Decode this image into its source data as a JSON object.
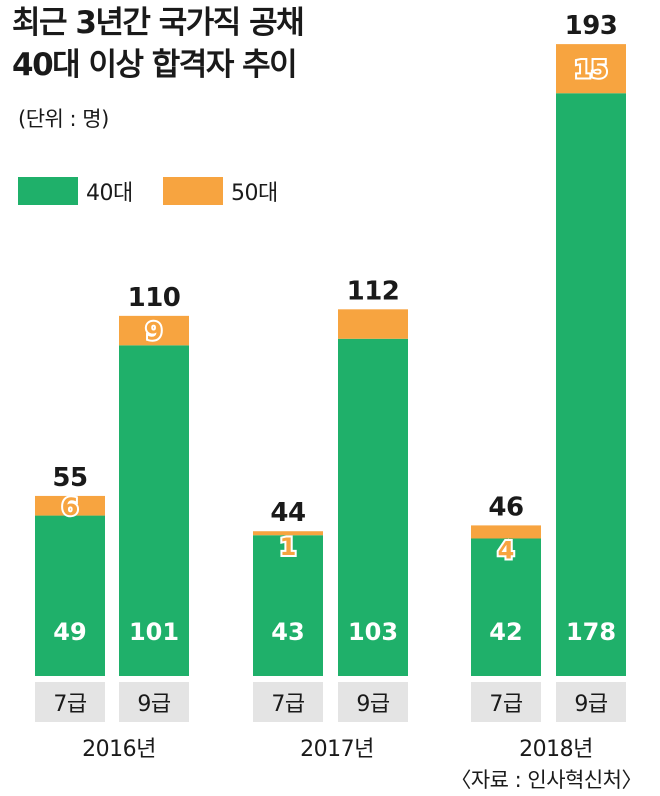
{
  "title_line1": "최근 3년간 국가직 공채",
  "title_line2": "40대 이상 합격자 추이",
  "unit": "(단위 : 명)",
  "source": "〈자료 : 인사혁신처〉",
  "colors": {
    "age40": "#1fb06a",
    "age50": "#f7a440",
    "xband": "#e4e4e4"
  },
  "chart_data": {
    "type": "bar",
    "stacked": true,
    "groups": [
      {
        "year": "2016년",
        "bars": [
          {
            "category": "7급",
            "age40": 49,
            "age50": 6,
            "total": 55
          },
          {
            "category": "9급",
            "age40": 101,
            "age50": 9,
            "total": 110
          }
        ]
      },
      {
        "year": "2017년",
        "bars": [
          {
            "category": "7급",
            "age40": 43,
            "age50": 1,
            "total": 44
          },
          {
            "category": "9급",
            "age40": 103,
            "age50": 9,
            "total": 112
          }
        ]
      },
      {
        "year": "2018년",
        "bars": [
          {
            "category": "7급",
            "age40": 42,
            "age50": 4,
            "total": 46
          },
          {
            "category": "9급",
            "age40": 178,
            "age50": 15,
            "total": 193
          }
        ]
      }
    ],
    "series": [
      {
        "key": "age40",
        "name": "40대",
        "color": "#1fb06a"
      },
      {
        "key": "age50",
        "name": "50대",
        "color": "#f7a440"
      }
    ],
    "notes": "2017년 9급 50대 구간은 숫자 표기 없음",
    "ylim": [
      0,
      193
    ]
  }
}
